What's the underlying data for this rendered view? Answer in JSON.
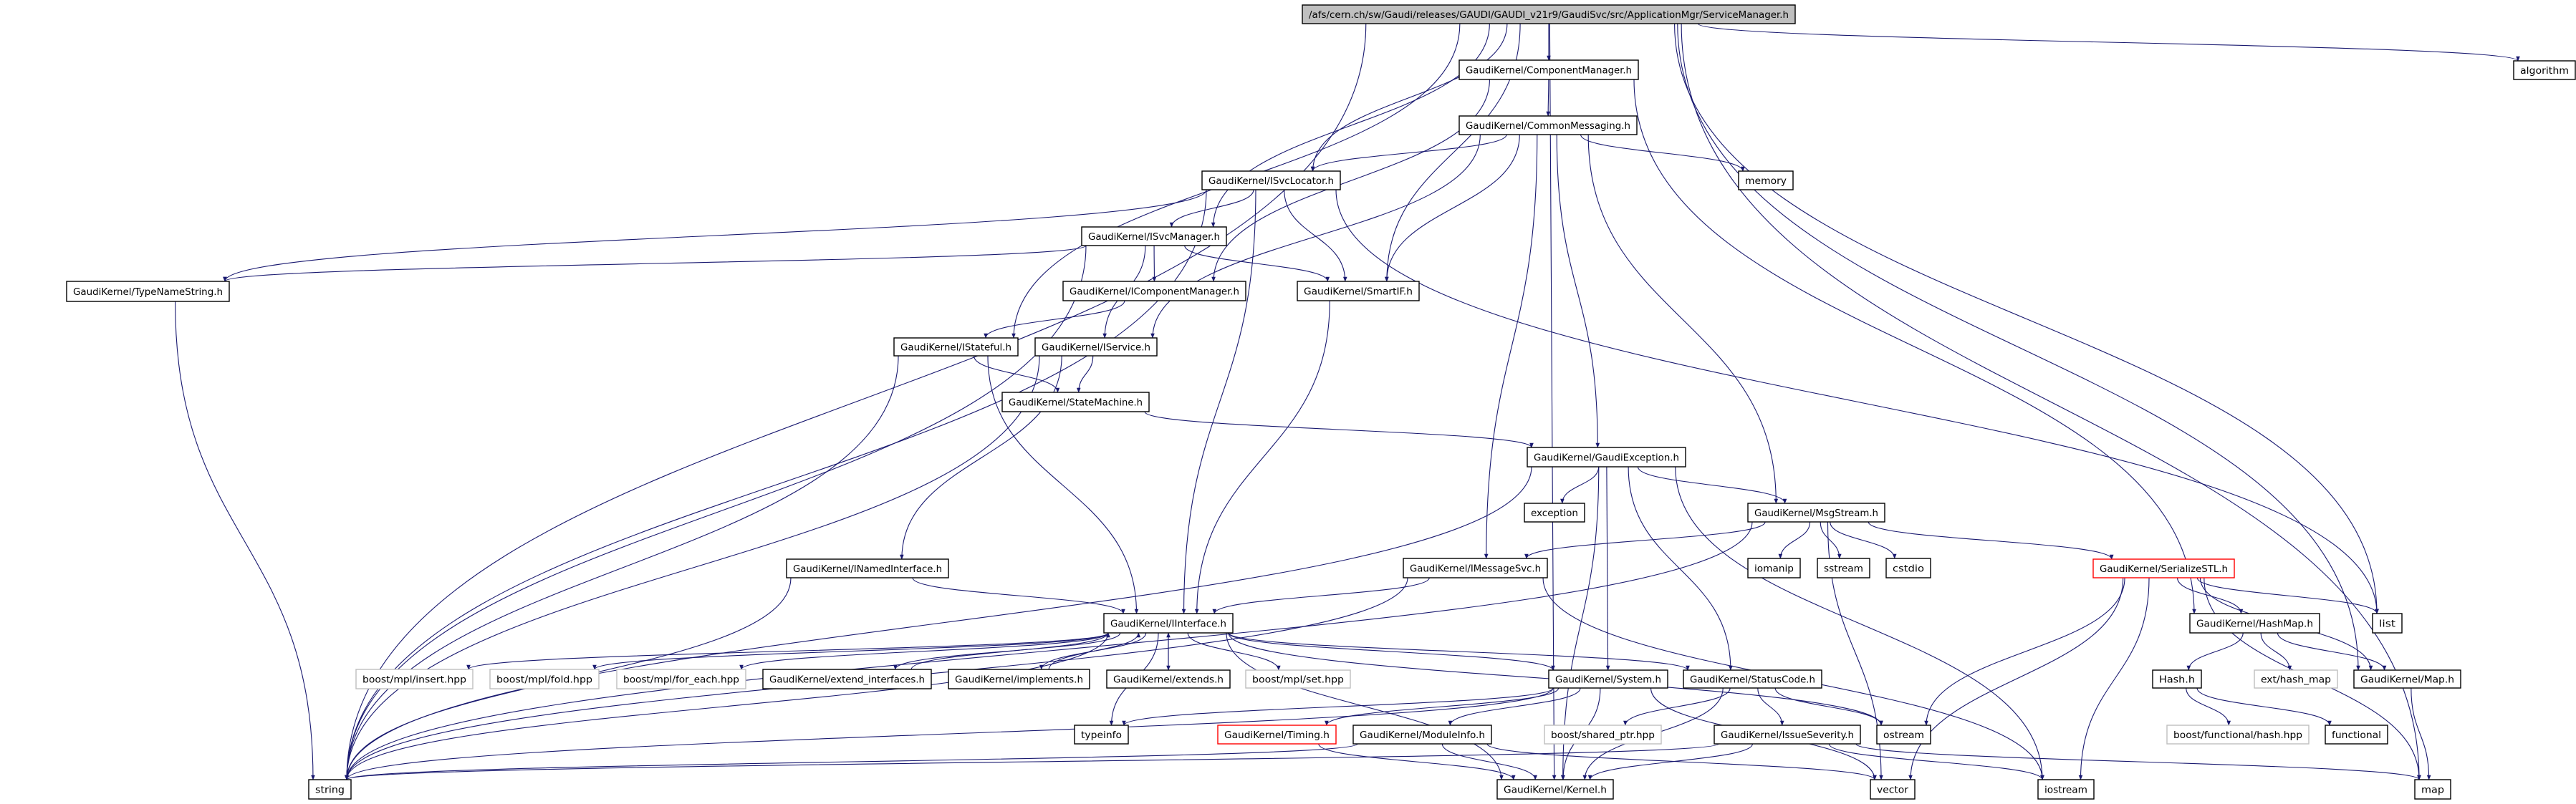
{
  "colors": {
    "edge": "#191970",
    "root_fill": "#bfbfbf",
    "documented_border": "#000000",
    "external_border": "#bfbfbf",
    "undocumented_border": "#ff0000"
  },
  "nodes": [
    {
      "id": "root",
      "label": "/afs/cern.ch/sw/Gaudi/releases/GAUDI/GAUDI_v21r9/GaudiSvc/src/ApplicationMgr/ServiceManager.h",
      "kind": "root"
    },
    {
      "id": "ComponentManager",
      "label": "GaudiKernel/ComponentManager.h",
      "kind": "documented"
    },
    {
      "id": "CommonMessaging",
      "label": "GaudiKernel/CommonMessaging.h",
      "kind": "documented"
    },
    {
      "id": "memory",
      "label": "memory",
      "kind": "documented"
    },
    {
      "id": "algorithm",
      "label": "algorithm",
      "kind": "documented"
    },
    {
      "id": "ISvcLocator",
      "label": "GaudiKernel/ISvcLocator.h",
      "kind": "documented"
    },
    {
      "id": "ISvcManager",
      "label": "GaudiKernel/ISvcManager.h",
      "kind": "documented"
    },
    {
      "id": "TypeNameString",
      "label": "GaudiKernel/TypeNameString.h",
      "kind": "documented"
    },
    {
      "id": "IComponentManager",
      "label": "GaudiKernel/IComponentManager.h",
      "kind": "documented"
    },
    {
      "id": "SmartIF",
      "label": "GaudiKernel/SmartIF.h",
      "kind": "documented"
    },
    {
      "id": "IStateful",
      "label": "GaudiKernel/IStateful.h",
      "kind": "documented"
    },
    {
      "id": "IService",
      "label": "GaudiKernel/IService.h",
      "kind": "documented"
    },
    {
      "id": "StateMachine",
      "label": "GaudiKernel/StateMachine.h",
      "kind": "documented"
    },
    {
      "id": "GaudiException",
      "label": "GaudiKernel/GaudiException.h",
      "kind": "documented"
    },
    {
      "id": "exception",
      "label": "exception",
      "kind": "documented"
    },
    {
      "id": "MsgStream",
      "label": "GaudiKernel/MsgStream.h",
      "kind": "documented"
    },
    {
      "id": "IMessageSvc",
      "label": "GaudiKernel/IMessageSvc.h",
      "kind": "documented"
    },
    {
      "id": "iomanip",
      "label": "iomanip",
      "kind": "documented"
    },
    {
      "id": "sstream",
      "label": "sstream",
      "kind": "documented"
    },
    {
      "id": "cstdio",
      "label": "cstdio",
      "kind": "documented"
    },
    {
      "id": "SerializeSTL",
      "label": "GaudiKernel/SerializeSTL.h",
      "kind": "undocumented"
    },
    {
      "id": "INamedInterface",
      "label": "GaudiKernel/INamedInterface.h",
      "kind": "documented"
    },
    {
      "id": "list",
      "label": "list",
      "kind": "documented"
    },
    {
      "id": "HashMap",
      "label": "GaudiKernel/HashMap.h",
      "kind": "documented"
    },
    {
      "id": "IInterface",
      "label": "GaudiKernel/IInterface.h",
      "kind": "documented"
    },
    {
      "id": "mpl_insert",
      "label": "boost/mpl/insert.hpp",
      "kind": "external"
    },
    {
      "id": "mpl_fold",
      "label": "boost/mpl/fold.hpp",
      "kind": "external"
    },
    {
      "id": "mpl_for_each",
      "label": "boost/mpl/for_each.hpp",
      "kind": "external"
    },
    {
      "id": "extend_interfaces",
      "label": "GaudiKernel/extend_interfaces.h",
      "kind": "documented"
    },
    {
      "id": "implements",
      "label": "GaudiKernel/implements.h",
      "kind": "documented"
    },
    {
      "id": "extends",
      "label": "GaudiKernel/extends.h",
      "kind": "documented"
    },
    {
      "id": "mpl_set",
      "label": "boost/mpl/set.hpp",
      "kind": "external"
    },
    {
      "id": "System",
      "label": "GaudiKernel/System.h",
      "kind": "documented"
    },
    {
      "id": "StatusCode",
      "label": "GaudiKernel/StatusCode.h",
      "kind": "documented"
    },
    {
      "id": "Hash",
      "label": "Hash.h",
      "kind": "documented"
    },
    {
      "id": "ext_hash_map",
      "label": "ext/hash_map",
      "kind": "external"
    },
    {
      "id": "Map",
      "label": "GaudiKernel/Map.h",
      "kind": "documented"
    },
    {
      "id": "typeinfo",
      "label": "typeinfo",
      "kind": "documented"
    },
    {
      "id": "Timing",
      "label": "GaudiKernel/Timing.h",
      "kind": "undocumented"
    },
    {
      "id": "ModuleInfo",
      "label": "GaudiKernel/ModuleInfo.h",
      "kind": "documented"
    },
    {
      "id": "shared_ptr",
      "label": "boost/shared_ptr.hpp",
      "kind": "external"
    },
    {
      "id": "IssueSeverity",
      "label": "GaudiKernel/IssueSeverity.h",
      "kind": "documented"
    },
    {
      "id": "ostream",
      "label": "ostream",
      "kind": "documented"
    },
    {
      "id": "functional_hash",
      "label": "boost/functional/hash.hpp",
      "kind": "external"
    },
    {
      "id": "functional",
      "label": "functional",
      "kind": "documented"
    },
    {
      "id": "string",
      "label": "string",
      "kind": "documented"
    },
    {
      "id": "Kernel",
      "label": "GaudiKernel/Kernel.h",
      "kind": "documented"
    },
    {
      "id": "vector",
      "label": "vector",
      "kind": "documented"
    },
    {
      "id": "iostream",
      "label": "iostream",
      "kind": "documented"
    },
    {
      "id": "map",
      "label": "map",
      "kind": "documented"
    }
  ],
  "edges": [
    [
      "root",
      "ComponentManager"
    ],
    [
      "root",
      "ISvcLocator"
    ],
    [
      "root",
      "ISvcManager"
    ],
    [
      "root",
      "IStateful"
    ],
    [
      "root",
      "string"
    ],
    [
      "root",
      "SmartIF"
    ],
    [
      "root",
      "Kernel"
    ],
    [
      "root",
      "list"
    ],
    [
      "root",
      "Map"
    ],
    [
      "root",
      "map"
    ],
    [
      "root",
      "algorithm"
    ],
    [
      "ComponentManager",
      "CommonMessaging"
    ],
    [
      "ComponentManager",
      "IComponentManager"
    ],
    [
      "ComponentManager",
      "HashMap"
    ],
    [
      "CommonMessaging",
      "ISvcLocator"
    ],
    [
      "CommonMessaging",
      "memory"
    ],
    [
      "CommonMessaging",
      "SmartIF"
    ],
    [
      "CommonMessaging",
      "IService"
    ],
    [
      "CommonMessaging",
      "IMessageSvc"
    ],
    [
      "CommonMessaging",
      "GaudiException"
    ],
    [
      "CommonMessaging",
      "MsgStream"
    ],
    [
      "ISvcLocator",
      "ISvcManager"
    ],
    [
      "ISvcLocator",
      "TypeNameString"
    ],
    [
      "ISvcLocator",
      "string"
    ],
    [
      "ISvcLocator",
      "SmartIF"
    ],
    [
      "ISvcLocator",
      "IInterface"
    ],
    [
      "ISvcLocator",
      "list"
    ],
    [
      "ISvcManager",
      "TypeNameString"
    ],
    [
      "ISvcManager",
      "IComponentManager"
    ],
    [
      "ISvcManager",
      "SmartIF"
    ],
    [
      "ISvcManager",
      "IService"
    ],
    [
      "ISvcManager",
      "string"
    ],
    [
      "IComponentManager",
      "IStateful"
    ],
    [
      "SmartIF",
      "IInterface"
    ],
    [
      "TypeNameString",
      "string"
    ],
    [
      "IStateful",
      "StateMachine"
    ],
    [
      "IStateful",
      "IInterface"
    ],
    [
      "IStateful",
      "string"
    ],
    [
      "IService",
      "StateMachine"
    ],
    [
      "IService",
      "INamedInterface"
    ],
    [
      "IService",
      "string"
    ],
    [
      "StateMachine",
      "GaudiException"
    ],
    [
      "GaudiException",
      "exception"
    ],
    [
      "GaudiException",
      "MsgStream"
    ],
    [
      "GaudiException",
      "System"
    ],
    [
      "GaudiException",
      "StatusCode"
    ],
    [
      "GaudiException",
      "Kernel"
    ],
    [
      "GaudiException",
      "iostream"
    ],
    [
      "GaudiException",
      "string"
    ],
    [
      "MsgStream",
      "IMessageSvc"
    ],
    [
      "MsgStream",
      "iomanip"
    ],
    [
      "MsgStream",
      "sstream"
    ],
    [
      "MsgStream",
      "cstdio"
    ],
    [
      "MsgStream",
      "SerializeSTL"
    ],
    [
      "MsgStream",
      "vector"
    ],
    [
      "MsgStream",
      "string"
    ],
    [
      "IMessageSvc",
      "IInterface"
    ],
    [
      "IMessageSvc",
      "string"
    ],
    [
      "IMessageSvc",
      "iostream"
    ],
    [
      "INamedInterface",
      "IInterface"
    ],
    [
      "INamedInterface",
      "string"
    ],
    [
      "IInterface",
      "mpl_insert"
    ],
    [
      "IInterface",
      "mpl_fold"
    ],
    [
      "IInterface",
      "mpl_for_each"
    ],
    [
      "IInterface",
      "extend_interfaces"
    ],
    [
      "IInterface",
      "implements"
    ],
    [
      "IInterface",
      "extends"
    ],
    [
      "IInterface",
      "mpl_set"
    ],
    [
      "IInterface",
      "System"
    ],
    [
      "IInterface",
      "StatusCode"
    ],
    [
      "IInterface",
      "ostream"
    ],
    [
      "IInterface",
      "typeinfo"
    ],
    [
      "IInterface",
      "string"
    ],
    [
      "IInterface",
      "Kernel"
    ],
    [
      "extend_interfaces",
      "IInterface"
    ],
    [
      "implements",
      "IInterface"
    ],
    [
      "extends",
      "IInterface"
    ],
    [
      "System",
      "Timing"
    ],
    [
      "System",
      "ModuleInfo"
    ],
    [
      "System",
      "typeinfo"
    ],
    [
      "System",
      "string"
    ],
    [
      "System",
      "vector"
    ],
    [
      "System",
      "Kernel"
    ],
    [
      "StatusCode",
      "shared_ptr"
    ],
    [
      "StatusCode",
      "IssueSeverity"
    ],
    [
      "StatusCode",
      "ostream"
    ],
    [
      "StatusCode",
      "Kernel"
    ],
    [
      "IssueSeverity",
      "Kernel"
    ],
    [
      "IssueSeverity",
      "string"
    ],
    [
      "IssueSeverity",
      "iostream"
    ],
    [
      "IssueSeverity",
      "map"
    ],
    [
      "Timing",
      "Kernel"
    ],
    [
      "ModuleInfo",
      "Kernel"
    ],
    [
      "ModuleInfo",
      "string"
    ],
    [
      "ModuleInfo",
      "vector"
    ],
    [
      "SerializeSTL",
      "HashMap"
    ],
    [
      "SerializeSTL",
      "list"
    ],
    [
      "SerializeSTL",
      "Map"
    ],
    [
      "SerializeSTL",
      "map"
    ],
    [
      "SerializeSTL",
      "ostream"
    ],
    [
      "SerializeSTL",
      "vector"
    ],
    [
      "SerializeSTL",
      "iostream"
    ],
    [
      "HashMap",
      "Hash"
    ],
    [
      "HashMap",
      "ext_hash_map"
    ],
    [
      "HashMap",
      "Map"
    ],
    [
      "Hash",
      "functional_hash"
    ],
    [
      "Hash",
      "functional"
    ],
    [
      "Map",
      "map"
    ]
  ]
}
